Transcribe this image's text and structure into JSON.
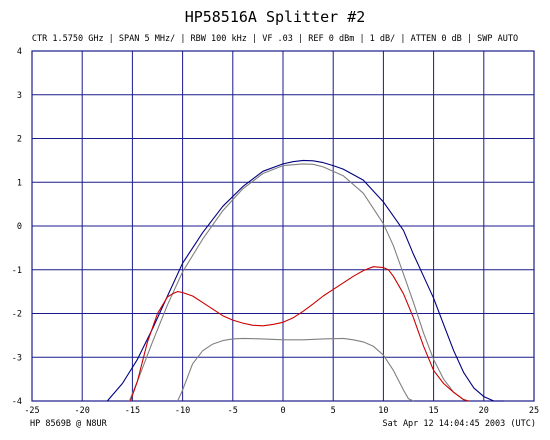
{
  "chart_data": {
    "type": "line",
    "title": "HP58516A Splitter #2",
    "settings": "CTR 1.5750 GHz | SPAN 5 MHz/ | RBW 100 kHz | VF .03 | REF 0 dBm | 1 dB/ | ATTEN 0 dB | SWP AUTO",
    "xlim": [
      -25,
      25
    ],
    "ylim": [
      -4,
      4
    ],
    "x_ticks": [
      -25,
      -20,
      -15,
      -10,
      -5,
      0,
      5,
      10,
      15,
      20,
      25
    ],
    "y_ticks": [
      4,
      3,
      2,
      1,
      0,
      -1,
      -2,
      -3,
      -4
    ],
    "grid": true,
    "grid_color": "#1a1a8c",
    "series": [
      {
        "color": "#000080",
        "x": [
          -17.5,
          -16,
          -14.5,
          -13,
          -11.5,
          -10,
          -8,
          -6,
          -4,
          -2,
          0,
          1,
          2,
          3,
          4,
          5,
          6,
          8,
          10,
          12,
          13,
          14,
          15,
          16,
          17,
          18,
          19,
          20,
          21,
          22
        ],
        "y": [
          -4,
          -3.6,
          -3.05,
          -2.35,
          -1.6,
          -0.85,
          -0.15,
          0.45,
          0.9,
          1.25,
          1.42,
          1.47,
          1.5,
          1.49,
          1.45,
          1.38,
          1.3,
          1.05,
          0.55,
          -0.1,
          -0.65,
          -1.15,
          -1.65,
          -2.25,
          -2.85,
          -3.35,
          -3.7,
          -3.9,
          -4,
          -4
        ]
      },
      {
        "color": "#808080",
        "x": [
          -15.3,
          -14.5,
          -13,
          -11.5,
          -10,
          -8,
          -6,
          -4,
          -2,
          0,
          2,
          3,
          4,
          6,
          8,
          10,
          11,
          12,
          13,
          14,
          15,
          16,
          17,
          18,
          18.5
        ],
        "y": [
          -4,
          -3.55,
          -2.65,
          -1.8,
          -1.05,
          -0.3,
          0.35,
          0.85,
          1.2,
          1.38,
          1.42,
          1.41,
          1.35,
          1.15,
          0.75,
          0.05,
          -0.45,
          -1.1,
          -1.75,
          -2.45,
          -3.05,
          -3.5,
          -3.8,
          -3.97,
          -4
        ]
      },
      {
        "color": "#cc0000",
        "x": [
          -15.2,
          -14.5,
          -13.5,
          -12.5,
          -11.5,
          -11,
          -10.5,
          -10,
          -9,
          -8,
          -7,
          -6,
          -5,
          -4,
          -3,
          -2,
          -1,
          0,
          1,
          2,
          3,
          4,
          5,
          6,
          7,
          8,
          9,
          10,
          10.5,
          11,
          12,
          13,
          14,
          15,
          16,
          17,
          18,
          18.5
        ],
        "y": [
          -4,
          -3.55,
          -2.65,
          -2.0,
          -1.62,
          -1.55,
          -1.5,
          -1.52,
          -1.6,
          -1.75,
          -1.9,
          -2.05,
          -2.15,
          -2.22,
          -2.27,
          -2.28,
          -2.25,
          -2.2,
          -2.1,
          -1.95,
          -1.78,
          -1.6,
          -1.45,
          -1.3,
          -1.15,
          -1.02,
          -0.93,
          -0.95,
          -1.0,
          -1.15,
          -1.55,
          -2.1,
          -2.75,
          -3.3,
          -3.6,
          -3.8,
          -3.97,
          -4
        ]
      },
      {
        "color": "#808080",
        "x": [
          -10.5,
          -10,
          -9,
          -8,
          -7,
          -6,
          -5,
          -4,
          -2,
          0,
          2,
          4,
          6,
          7,
          8,
          9,
          10,
          11,
          12,
          12.5,
          13
        ],
        "y": [
          -4,
          -3.75,
          -3.15,
          -2.85,
          -2.7,
          -2.62,
          -2.58,
          -2.57,
          -2.58,
          -2.6,
          -2.6,
          -2.58,
          -2.57,
          -2.6,
          -2.65,
          -2.75,
          -2.95,
          -3.3,
          -3.75,
          -3.95,
          -4
        ]
      }
    ]
  },
  "footer": {
    "left": "HP 8569B @ N8UR",
    "right": "Sat Apr 12 14:04:45 2003 (UTC)"
  }
}
